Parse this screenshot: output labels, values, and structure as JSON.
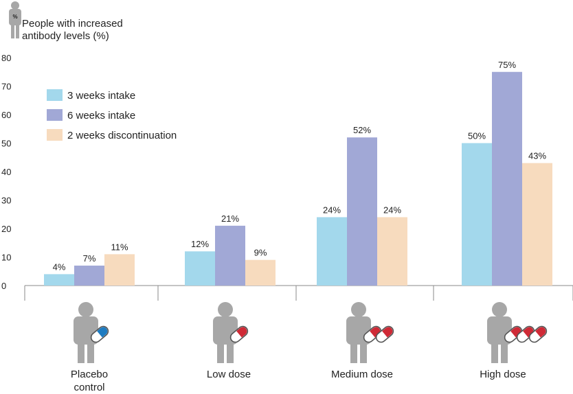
{
  "header": {
    "icon_label": "%",
    "ylabel_line1": "People with increased",
    "ylabel_line2": "antibody levels (%)"
  },
  "chart_data": {
    "type": "bar",
    "ylabel": "People with increased antibody levels (%)",
    "ylim": [
      0,
      80
    ],
    "yticks": [
      0,
      10,
      20,
      30,
      40,
      50,
      60,
      70,
      80
    ],
    "grid": false,
    "legend_position": "top-left",
    "categories": [
      "Placebo control",
      "Low dose",
      "Medium dose",
      "High dose"
    ],
    "category_label_lines": [
      [
        "Placebo",
        "control"
      ],
      [
        "Low dose"
      ],
      [
        "Medium dose"
      ],
      [
        "High dose"
      ]
    ],
    "series": [
      {
        "name": "3 weeks intake",
        "color": "#a3d8ec",
        "values": [
          4,
          12,
          24,
          50
        ],
        "labels": [
          "4%",
          "12%",
          "24%",
          "50%"
        ]
      },
      {
        "name": "6 weeks intake",
        "color": "#a1a8d6",
        "values": [
          7,
          21,
          52,
          75
        ],
        "labels": [
          "7%",
          "21%",
          "52%",
          "75%"
        ]
      },
      {
        "name": "2 weeks discontinuation",
        "color": "#f7dbbe",
        "values": [
          11,
          9,
          24,
          43
        ],
        "labels": [
          "11%",
          "9%",
          "24%",
          "43%"
        ]
      }
    ],
    "category_icons": [
      {
        "icon": "person-with-blue-capsule-icon",
        "pills": 1,
        "pill_color": "#1f7cc1"
      },
      {
        "icon": "person-with-red-capsule-icon",
        "pills": 1,
        "pill_color": "#cf2a36"
      },
      {
        "icon": "person-with-two-red-capsules-icon",
        "pills": 2,
        "pill_color": "#cf2a36"
      },
      {
        "icon": "person-with-three-red-capsules-icon",
        "pills": 3,
        "pill_color": "#cf2a36"
      }
    ],
    "colors": {
      "axis": "#8a8a8a",
      "person": "#a7a7a7",
      "text": "#222222"
    }
  }
}
